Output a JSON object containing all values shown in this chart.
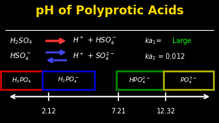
{
  "title": "pH of Polyprotic Acids",
  "title_color": "#FFD700",
  "bg_color": "#000000",
  "line1_arrow_color": "#FF3333",
  "line1_ka_color": "#00FF00",
  "line2_arrow_color": "#4444FF",
  "box1_color": "#CC0000",
  "box2_color": "#0000CC",
  "box3_color": "#008800",
  "box4_color": "#AAAA00",
  "tick1": "2.12",
  "tick2": "7.21",
  "tick3": "12.32",
  "text_color": "#FFFFFF"
}
